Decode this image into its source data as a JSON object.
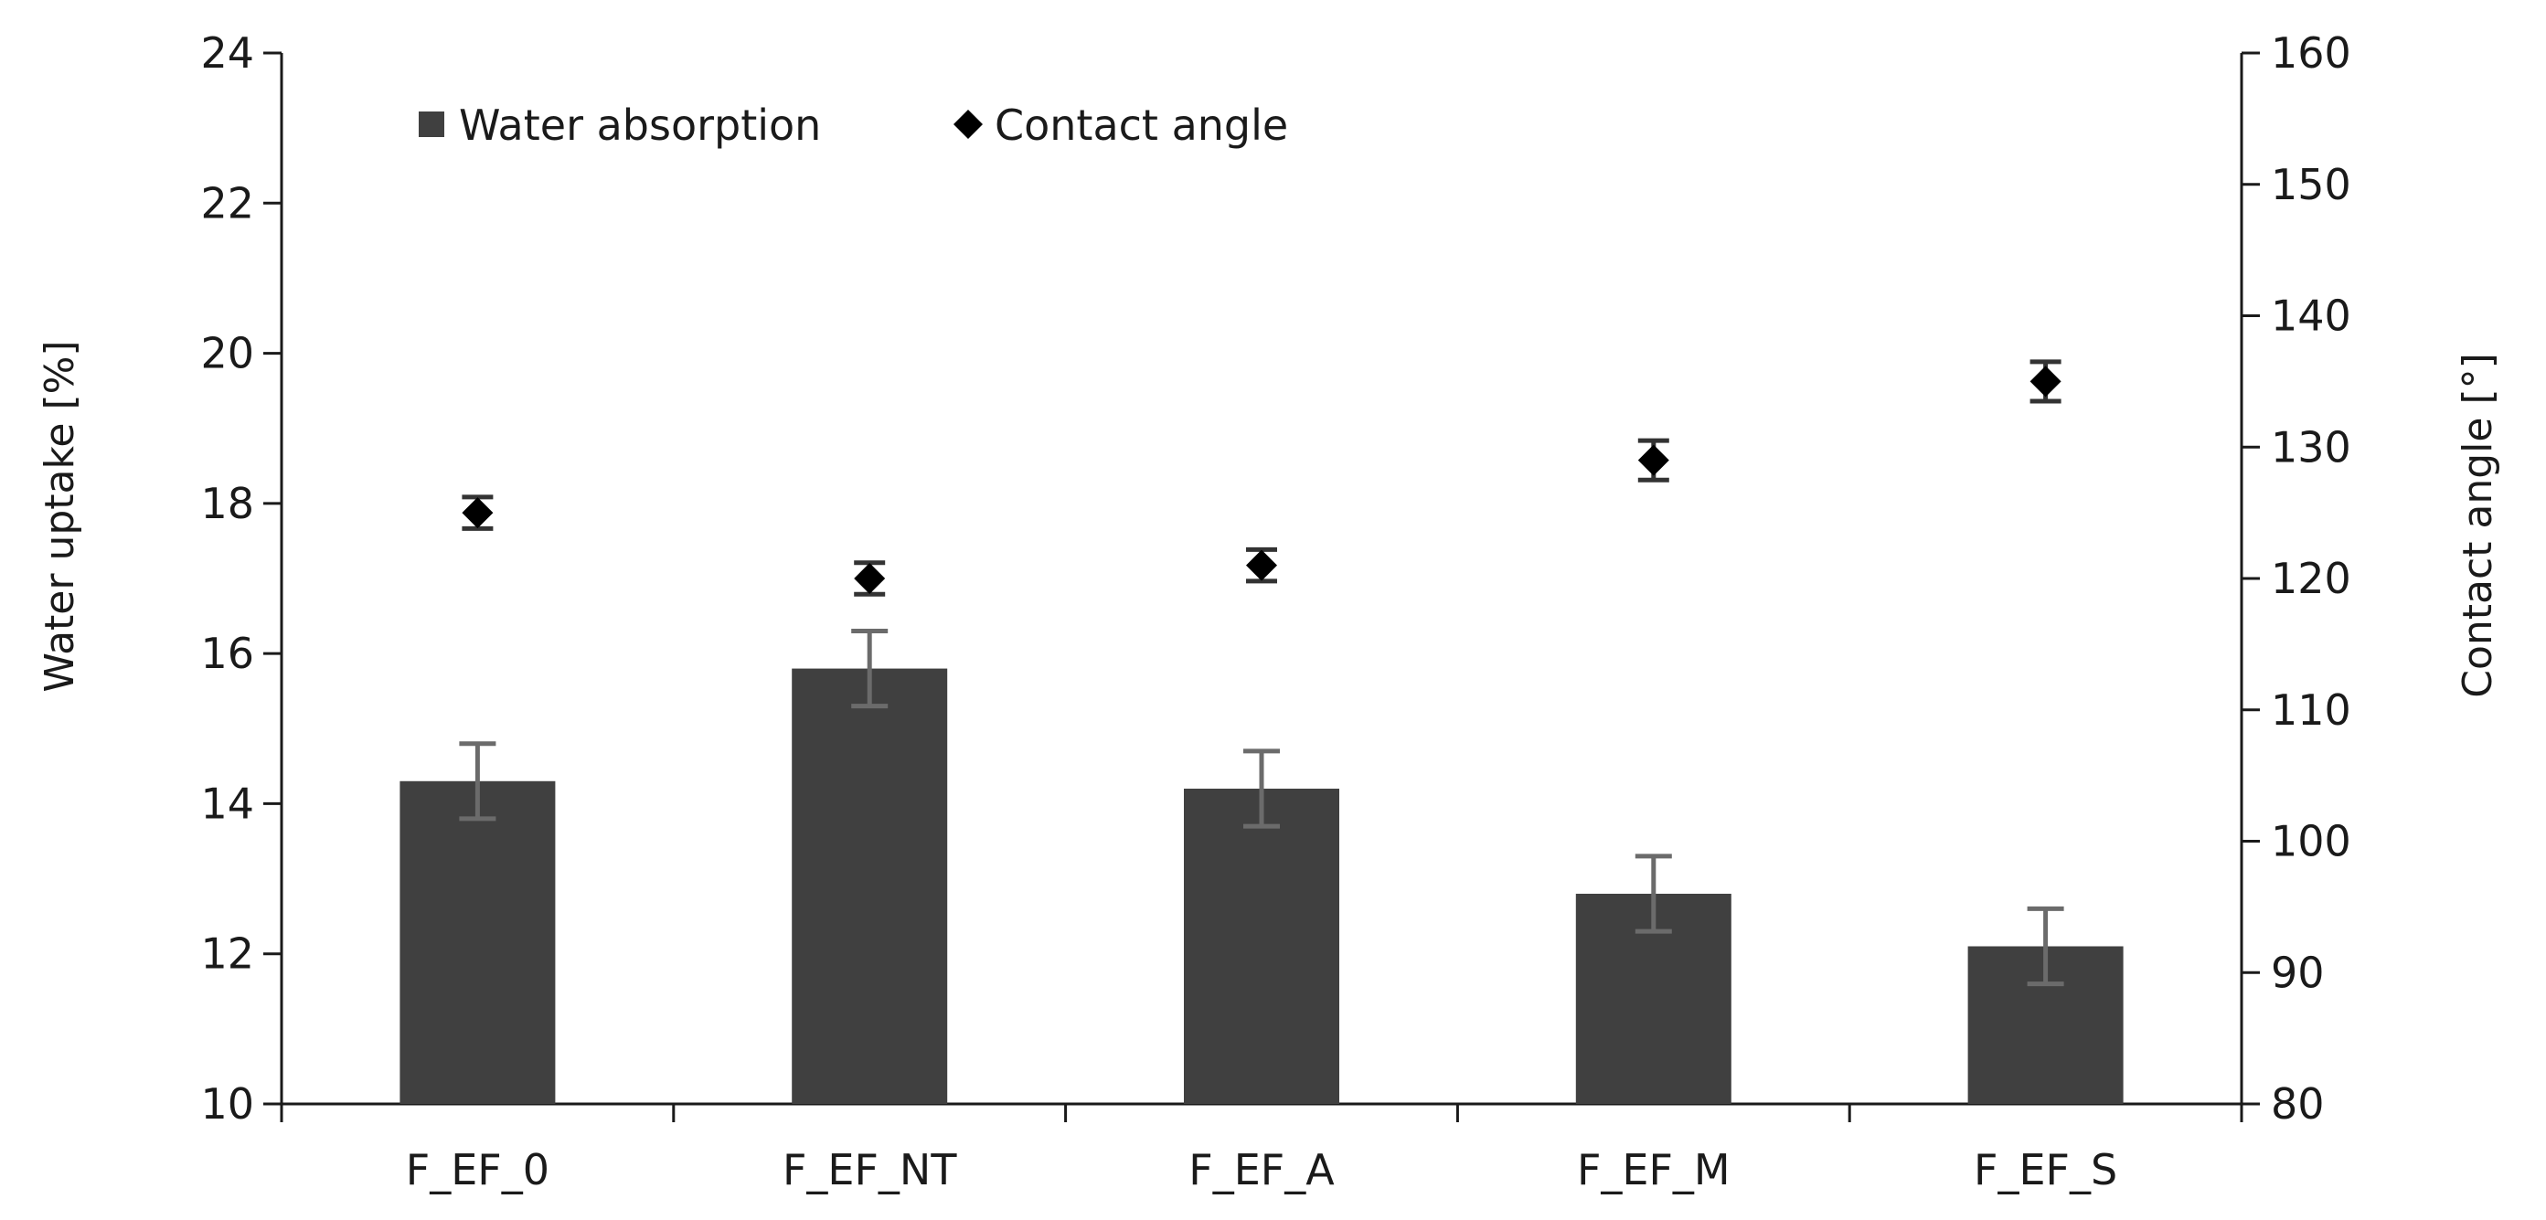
{
  "chart_data": {
    "type": "bar",
    "categories": [
      "F_EF_0",
      "F_EF_NT",
      "F_EF_A",
      "F_EF_M",
      "F_EF_S"
    ],
    "series": [
      {
        "name": "Water absorption",
        "type": "bar",
        "axis": "left",
        "values": [
          14.3,
          15.8,
          14.2,
          12.8,
          12.1
        ],
        "error": [
          0.5,
          0.5,
          0.5,
          0.5,
          0.5
        ],
        "color": "#404040"
      },
      {
        "name": "Contact angle",
        "type": "scatter",
        "marker": "diamond",
        "axis": "right",
        "values": [
          125,
          120,
          121,
          129,
          135
        ],
        "error": [
          1.2,
          1.2,
          1.2,
          1.5,
          1.5
        ],
        "color": "#000000"
      }
    ],
    "ylabel": "Water uptake [%]",
    "ylim": [
      10,
      24
    ],
    "yticks": [
      "10",
      "12",
      "14",
      "16",
      "18",
      "20",
      "22",
      "24"
    ],
    "y2label": "Contact angle [°]",
    "y2lim": [
      80,
      160
    ],
    "y2ticks": [
      "80",
      "90",
      "100",
      "110",
      "120",
      "130",
      "140",
      "150",
      "160"
    ],
    "grid": false,
    "legend_position": "top-left"
  }
}
